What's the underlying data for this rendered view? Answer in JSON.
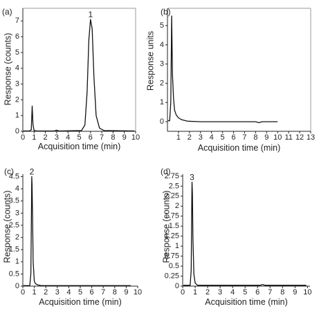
{
  "chart_data": [
    {
      "type": "line",
      "panel_label": "(a)",
      "xlabel": "Acquisition time (min)",
      "ylabel": "Response (counts)",
      "xlim": [
        0,
        10
      ],
      "ylim": [
        0,
        7.8
      ],
      "x_ticks": [
        0,
        1,
        2,
        3,
        4,
        5,
        6,
        7,
        8,
        9,
        10
      ],
      "y_ticks": [
        0,
        1,
        2,
        3,
        4,
        5,
        6,
        7
      ],
      "peaks": [
        {
          "x": 6.0,
          "y": 7.1,
          "label": "1"
        }
      ],
      "series": [
        {
          "x": [
            0.05,
            0.6,
            0.75,
            0.83,
            0.9,
            1.0,
            1.2,
            2.8,
            3.0,
            3.2,
            5.2,
            5.5,
            5.7,
            5.85,
            6.0,
            6.15,
            6.3,
            6.5,
            6.8,
            7.2,
            9.9
          ],
          "y": [
            0.02,
            0.02,
            0.1,
            1.6,
            0.4,
            0.05,
            0.02,
            0.02,
            0.07,
            0.02,
            0.05,
            0.4,
            2.5,
            5.8,
            7.1,
            6.5,
            3.5,
            1.0,
            0.2,
            0.05,
            0.02
          ]
        }
      ]
    },
    {
      "type": "line",
      "panel_label": "(b)",
      "xlabel": "Acquisition time (min)",
      "ylabel": "Response units",
      "xlim": [
        0,
        13
      ],
      "ylim": [
        -0.5,
        5.9
      ],
      "x_ticks": [
        1,
        2,
        3,
        4,
        5,
        6,
        7,
        8,
        9,
        10,
        11,
        12,
        13
      ],
      "y_ticks": [
        0,
        1,
        2,
        3,
        4,
        5
      ],
      "peaks": [],
      "series": [
        {
          "x": [
            0.05,
            0.2,
            0.3,
            0.38,
            0.45,
            0.55,
            0.65,
            0.8,
            1.0,
            1.3,
            1.8,
            3.0,
            8.0,
            8.3,
            8.6,
            9.0,
            10.0
          ],
          "y": [
            0.05,
            0.05,
            1.0,
            5.5,
            2.5,
            1.2,
            0.6,
            0.35,
            0.2,
            0.1,
            0.03,
            0.0,
            0.0,
            -0.05,
            0.0,
            0.0,
            0.0
          ]
        }
      ]
    },
    {
      "type": "line",
      "panel_label": "(c)",
      "xlabel": "Acquisition time (min)",
      "ylabel": "Response (counts)",
      "xlim": [
        0,
        10
      ],
      "ylim": [
        0,
        4.6
      ],
      "x_ticks": [
        0,
        1,
        2,
        3,
        4,
        5,
        6,
        7,
        8,
        9,
        10
      ],
      "y_ticks": [
        0,
        0.5,
        1,
        1.5,
        2,
        2.5,
        3,
        3.5,
        4,
        4.5
      ],
      "peaks": [
        {
          "x": 0.78,
          "y": 4.5,
          "label": "2"
        }
      ],
      "series": [
        {
          "x": [
            0.05,
            0.6,
            0.7,
            0.76,
            0.78,
            0.8,
            0.85,
            0.9,
            1.0,
            1.1,
            1.3,
            1.6,
            9.4
          ],
          "y": [
            0.02,
            0.02,
            0.5,
            3.5,
            4.5,
            4.2,
            2.8,
            1.0,
            0.2,
            0.1,
            0.05,
            0.02,
            0.02
          ]
        }
      ]
    },
    {
      "type": "line",
      "panel_label": "(d)",
      "xlabel": "Acquisition time (min)",
      "ylabel": "Response (counts)",
      "xlim": [
        0,
        10.2
      ],
      "ylim": [
        0,
        2.8
      ],
      "x_ticks": [
        0,
        1,
        2,
        3,
        4,
        5,
        6,
        7,
        8,
        9,
        10
      ],
      "y_ticks": [
        0,
        0.25,
        0.5,
        0.75,
        1,
        1.25,
        1.5,
        1.75,
        2,
        2.25,
        2.5,
        2.75
      ],
      "peaks": [
        {
          "x": 0.75,
          "y": 2.6,
          "label": "3"
        }
      ],
      "series": [
        {
          "x": [
            0.05,
            0.6,
            0.68,
            0.73,
            0.75,
            0.78,
            0.82,
            0.9,
            1.0,
            1.2,
            6.2,
            6.4,
            6.6,
            9.9
          ],
          "y": [
            0.02,
            0.02,
            0.4,
            2.2,
            2.6,
            2.3,
            1.2,
            0.3,
            0.08,
            0.02,
            0.02,
            0.04,
            0.02,
            0.02
          ]
        }
      ]
    }
  ]
}
